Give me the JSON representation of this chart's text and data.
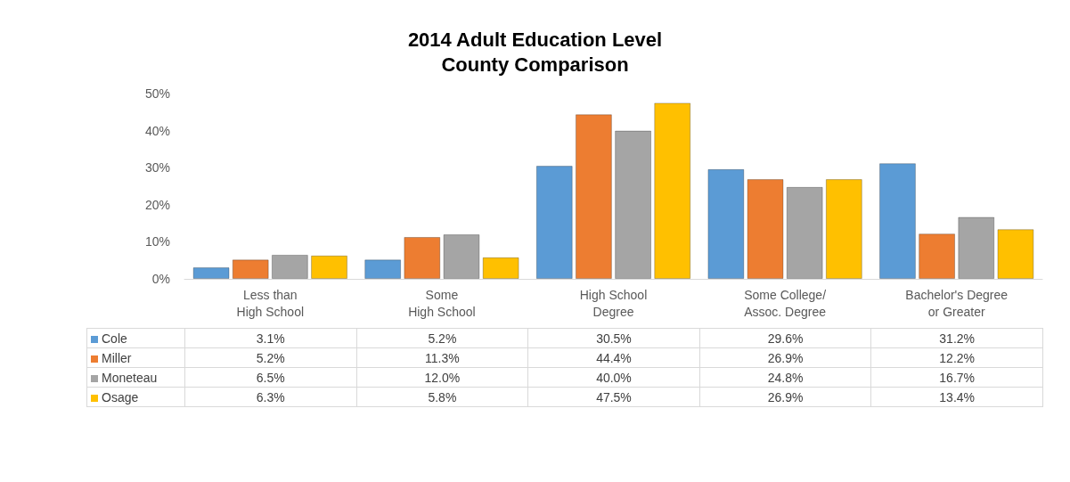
{
  "chart_data": {
    "type": "bar",
    "title": "2014 Adult Education Level",
    "subtitle": "County Comparison",
    "categories": [
      "Less than\nHigh School",
      "Some\nHigh School",
      "High School\nDegree",
      "Some College/\nAssoc. Degree",
      "Bachelor's Degree\nor Greater"
    ],
    "series": [
      {
        "name": "Cole",
        "color": "#5b9bd5",
        "values": [
          3.1,
          5.2,
          30.5,
          29.6,
          31.2
        ],
        "value_labels": [
          "3.1%",
          "5.2%",
          "30.5%",
          "29.6%",
          "31.2%"
        ]
      },
      {
        "name": "Miller",
        "color": "#ed7d31",
        "values": [
          5.2,
          11.3,
          44.4,
          26.9,
          12.2
        ],
        "value_labels": [
          "5.2%",
          "11.3%",
          "44.4%",
          "26.9%",
          "12.2%"
        ]
      },
      {
        "name": "Moneteau",
        "color": "#a5a5a5",
        "values": [
          6.5,
          12.0,
          40.0,
          24.8,
          16.7
        ],
        "value_labels": [
          "6.5%",
          "12.0%",
          "40.0%",
          "24.8%",
          "16.7%"
        ]
      },
      {
        "name": "Osage",
        "color": "#ffc000",
        "values": [
          6.3,
          5.8,
          47.5,
          26.9,
          13.4
        ],
        "value_labels": [
          "6.3%",
          "5.8%",
          "47.5%",
          "26.9%",
          "13.4%"
        ]
      }
    ],
    "ylim": [
      0,
      50
    ],
    "yticks": [
      {
        "value": 0,
        "label": "0%"
      },
      {
        "value": 10,
        "label": "10%"
      },
      {
        "value": 20,
        "label": "20%"
      },
      {
        "value": 30,
        "label": "30%"
      },
      {
        "value": 40,
        "label": "40%"
      },
      {
        "value": 50,
        "label": "50%"
      }
    ],
    "grid": false,
    "legend": "bottom left"
  }
}
